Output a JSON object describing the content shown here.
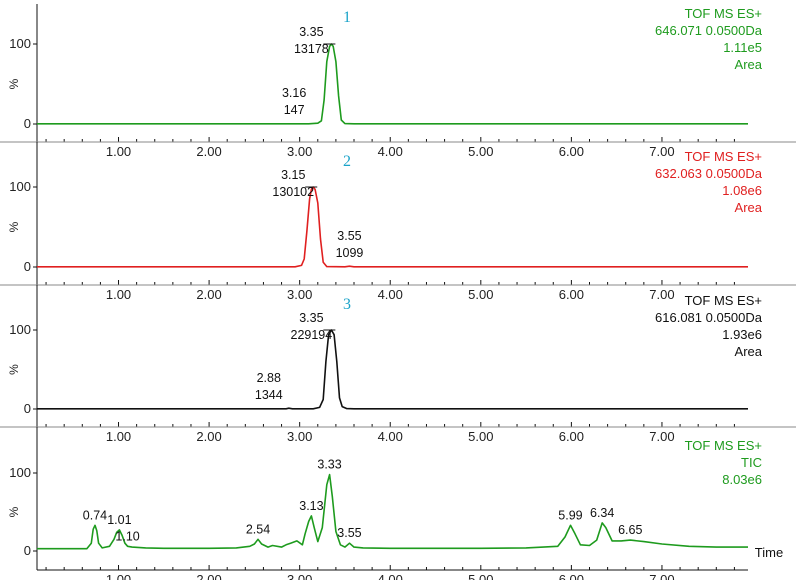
{
  "chart_data": [
    {
      "type": "line",
      "panel_number": "1",
      "info": [
        "TOF MS ES+",
        "646.071 0.0500Da",
        "1.11e5",
        "Area"
      ],
      "color": "#1e9b1e",
      "ylabel": "%",
      "yticks": [
        "0",
        "100"
      ],
      "ylim": [
        0,
        100
      ],
      "xlim": [
        0.1,
        7.95
      ],
      "xticks": [
        "1.00",
        "2.00",
        "3.00",
        "4.00",
        "5.00",
        "6.00",
        "7.00"
      ],
      "x": [
        0.1,
        3.1,
        3.2,
        3.24,
        3.27,
        3.3,
        3.33,
        3.35,
        3.37,
        3.4,
        3.43,
        3.46,
        3.5,
        3.6,
        7.95
      ],
      "y": [
        0.3,
        0.3,
        1,
        4,
        30,
        78,
        97,
        100,
        97,
        78,
        35,
        5,
        0.5,
        0.3,
        0.3
      ],
      "peak_labels": [
        {
          "rt": "3.35",
          "area": "13178",
          "x": 3.35,
          "y": 100
        },
        {
          "rt": "3.16",
          "area": "147",
          "x": 3.16,
          "y": 1
        }
      ]
    },
    {
      "type": "line",
      "panel_number": "2",
      "info": [
        "TOF MS ES+",
        "632.063 0.0500Da",
        "1.08e6",
        "Area"
      ],
      "color": "#e02020",
      "ylabel": "%",
      "yticks": [
        "0",
        "100"
      ],
      "ylim": [
        0,
        100
      ],
      "xlim": [
        0.1,
        7.95
      ],
      "xticks": [
        "1.00",
        "2.00",
        "3.00",
        "4.00",
        "5.00",
        "6.00",
        "7.00"
      ],
      "x": [
        0.1,
        2.95,
        3.02,
        3.05,
        3.08,
        3.11,
        3.13,
        3.15,
        3.17,
        3.2,
        3.23,
        3.26,
        3.3,
        3.5,
        3.55,
        3.6,
        7.95
      ],
      "y": [
        0.3,
        0.3,
        2,
        10,
        45,
        85,
        97,
        100,
        97,
        80,
        35,
        6,
        0.5,
        0.3,
        1,
        0.3,
        0.3
      ],
      "peak_labels": [
        {
          "rt": "3.15",
          "area": "130102",
          "x": 3.15,
          "y": 100
        },
        {
          "rt": "3.55",
          "area": "1099",
          "x": 3.55,
          "y": 1
        }
      ]
    },
    {
      "type": "line",
      "panel_number": "3",
      "info": [
        "TOF MS ES+",
        "616.081 0.0500Da",
        "1.93e6",
        "Area"
      ],
      "color": "#111111",
      "ylabel": "%",
      "yticks": [
        "0",
        "100"
      ],
      "ylim": [
        0,
        100
      ],
      "xlim": [
        0.1,
        7.95
      ],
      "xticks": [
        "1.00",
        "2.00",
        "3.00",
        "4.00",
        "5.00",
        "6.00",
        "7.00"
      ],
      "x": [
        0.1,
        2.85,
        2.88,
        2.92,
        3.15,
        3.22,
        3.26,
        3.29,
        3.32,
        3.35,
        3.38,
        3.41,
        3.44,
        3.47,
        3.52,
        3.6,
        7.95
      ],
      "y": [
        0.3,
        0.3,
        1,
        0.3,
        0.3,
        2,
        12,
        60,
        94,
        100,
        94,
        60,
        14,
        3,
        0.5,
        0.3,
        0.3
      ],
      "peak_labels": [
        {
          "rt": "3.35",
          "area": "229194",
          "x": 3.35,
          "y": 100
        },
        {
          "rt": "2.88",
          "area": "1344",
          "x": 2.88,
          "y": 1
        }
      ]
    },
    {
      "type": "line",
      "info": [
        "TOF MS ES+",
        "TIC",
        "8.03e6"
      ],
      "color": "#1e9b1e",
      "ylabel": "%",
      "yticks": [
        "0",
        "100"
      ],
      "ylim": [
        0,
        100
      ],
      "xlim": [
        0.1,
        7.95
      ],
      "xticks": [
        "1.00",
        "2.00",
        "3.00",
        "4.00",
        "5.00",
        "6.00",
        "7.00"
      ],
      "xlabel": "Time",
      "x": [
        0.1,
        0.4,
        0.65,
        0.7,
        0.72,
        0.74,
        0.76,
        0.78,
        0.82,
        0.9,
        0.95,
        0.98,
        1.01,
        1.04,
        1.07,
        1.1,
        1.15,
        1.3,
        1.5,
        2.0,
        2.3,
        2.45,
        2.5,
        2.54,
        2.58,
        2.65,
        2.7,
        2.8,
        2.85,
        2.9,
        2.97,
        3.03,
        3.06,
        3.1,
        3.13,
        3.16,
        3.2,
        3.25,
        3.3,
        3.33,
        3.36,
        3.4,
        3.45,
        3.5,
        3.55,
        3.6,
        3.7,
        4.0,
        4.5,
        5.0,
        5.5,
        5.85,
        5.93,
        5.99,
        6.04,
        6.1,
        6.2,
        6.28,
        6.34,
        6.38,
        6.45,
        6.55,
        6.65,
        6.8,
        7.0,
        7.3,
        7.6,
        7.95
      ],
      "y": [
        3,
        3,
        3,
        10,
        28,
        33,
        26,
        10,
        4,
        6,
        15,
        24,
        27,
        20,
        10,
        6,
        5,
        4,
        3.5,
        3.5,
        4,
        6,
        9,
        15,
        9,
        5,
        7,
        5,
        8,
        10,
        13,
        8,
        22,
        38,
        45,
        30,
        12,
        30,
        85,
        98,
        70,
        25,
        8,
        5,
        10,
        5,
        4,
        3.5,
        3.5,
        3.5,
        4,
        6,
        18,
        33,
        22,
        8,
        7,
        14,
        36,
        30,
        13,
        13,
        14,
        12,
        9,
        6,
        5,
        5
      ],
      "peak_labels": [
        {
          "rt": "0.74",
          "x": 0.74,
          "y": 33
        },
        {
          "rt": "1.01",
          "x": 1.01,
          "y": 27
        },
        {
          "rt": "1.10",
          "x": 1.1,
          "y": 6
        },
        {
          "rt": "2.54",
          "x": 2.54,
          "y": 15
        },
        {
          "rt": "3.13",
          "x": 3.13,
          "y": 45
        },
        {
          "rt": "3.33",
          "x": 3.33,
          "y": 98
        },
        {
          "rt": "3.55",
          "x": 3.55,
          "y": 10
        },
        {
          "rt": "5.99",
          "x": 5.99,
          "y": 33
        },
        {
          "rt": "6.34",
          "x": 6.34,
          "y": 36
        },
        {
          "rt": "6.65",
          "x": 6.65,
          "y": 14
        }
      ]
    }
  ]
}
